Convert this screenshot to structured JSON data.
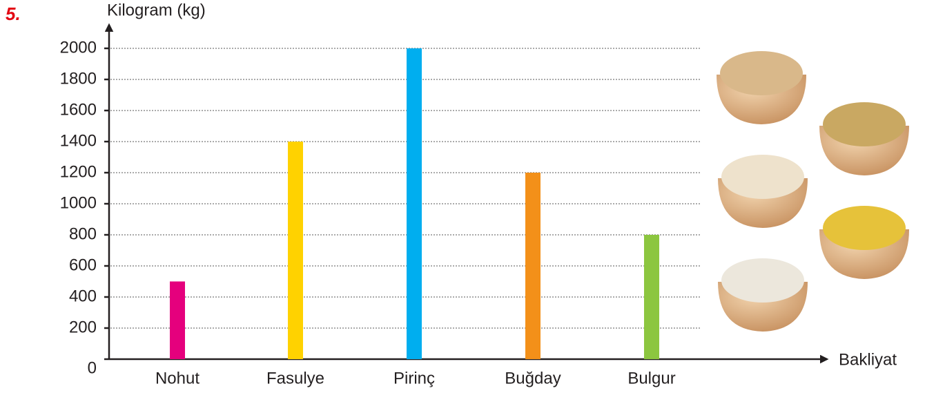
{
  "question_number": "5.",
  "chart_data": {
    "type": "bar",
    "y_label": "Kilogram (kg)",
    "x_label": "Bakliyat",
    "categories": [
      "Nohut",
      "Fasulye",
      "Pirinç",
      "Buğday",
      "Bulgur"
    ],
    "values": [
      500,
      1400,
      2000,
      1200,
      800
    ],
    "colors": [
      "#e5007d",
      "#ffd200",
      "#00aeef",
      "#f39019",
      "#8cc63f"
    ],
    "ylim": [
      0,
      2000
    ],
    "yticks": [
      0,
      200,
      400,
      600,
      800,
      1000,
      1200,
      1400,
      1600,
      1800,
      2000
    ],
    "grid": true
  }
}
